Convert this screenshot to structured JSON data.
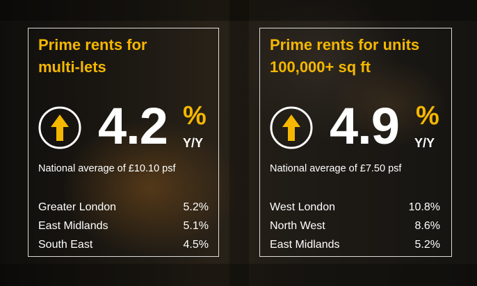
{
  "panels": [
    {
      "title_line1": "Prime rents for",
      "title_line2": "multi-lets",
      "value": "4.2",
      "unit": "%",
      "period": "Y/Y",
      "trend_icon": "arrow-up-icon",
      "average": "National average of £10.10 psf",
      "regions": [
        {
          "name": "Greater London",
          "value": "5.2%"
        },
        {
          "name": "East Midlands",
          "value": "5.1%"
        },
        {
          "name": "South East",
          "value": "4.5%"
        }
      ]
    },
    {
      "title_line1": "Prime rents for units",
      "title_line2": "100,000+ sq ft",
      "value": "4.9",
      "unit": "%",
      "period": "Y/Y",
      "trend_icon": "arrow-up-icon",
      "average": "National average of £7.50 psf",
      "regions": [
        {
          "name": "West London",
          "value": "10.8%"
        },
        {
          "name": "North West",
          "value": "8.6%"
        },
        {
          "name": "East Midlands",
          "value": "5.2%"
        }
      ]
    }
  ],
  "colors": {
    "accent": "#f5b700",
    "text": "#ffffff"
  }
}
